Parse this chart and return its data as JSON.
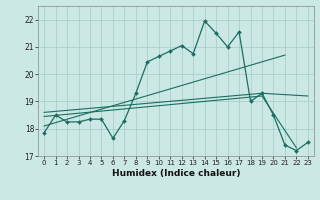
{
  "xlabel": "Humidex (Indice chaleur)",
  "background_color": "#cce8e4",
  "grid_color": "#aacfca",
  "line_color": "#1a6e62",
  "xlim": [
    -0.5,
    23.5
  ],
  "ylim": [
    17.0,
    22.5
  ],
  "yticks": [
    17,
    18,
    19,
    20,
    21,
    22
  ],
  "xticks": [
    0,
    1,
    2,
    3,
    4,
    5,
    6,
    7,
    8,
    9,
    10,
    11,
    12,
    13,
    14,
    15,
    16,
    17,
    18,
    19,
    20,
    21,
    22,
    23
  ],
  "main_line_x": [
    0,
    1,
    2,
    3,
    4,
    5,
    6,
    7,
    8,
    9,
    10,
    11,
    12,
    13,
    14,
    15,
    16,
    17,
    18,
    19,
    20,
    21,
    22,
    23
  ],
  "main_line_y": [
    17.85,
    18.5,
    18.25,
    18.25,
    18.35,
    18.35,
    17.65,
    18.3,
    19.3,
    20.45,
    20.65,
    20.85,
    21.05,
    20.75,
    21.95,
    21.5,
    21.0,
    21.55,
    19.0,
    19.3,
    18.5,
    17.4,
    17.2,
    17.5
  ],
  "trend1_x": [
    0,
    21
  ],
  "trend1_y": [
    18.1,
    20.7
  ],
  "trend2_x": [
    0,
    19,
    22
  ],
  "trend2_y": [
    18.45,
    19.2,
    17.3
  ],
  "trend3_x": [
    0,
    19,
    23
  ],
  "trend3_y": [
    18.6,
    19.3,
    19.2
  ]
}
